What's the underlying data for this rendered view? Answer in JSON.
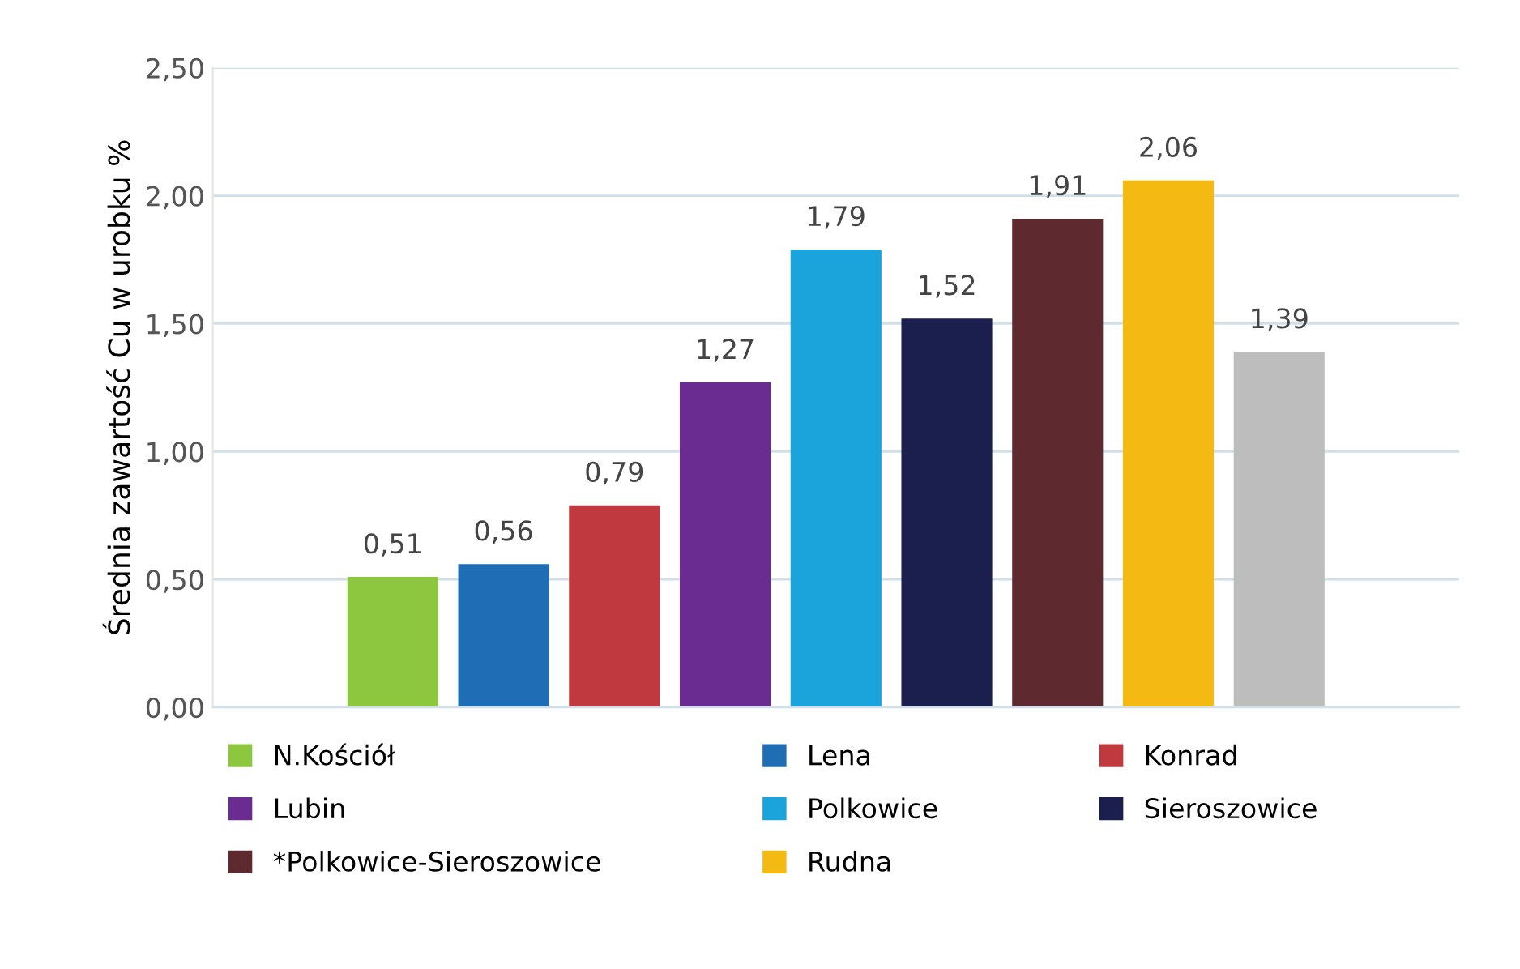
{
  "chart_data": {
    "type": "bar",
    "ylabel": "Średnia zawartość Cu w urobku %",
    "categories": [
      null
    ],
    "series": [
      {
        "name": "N.Kościół",
        "color": "#8dc63f",
        "values": [
          0.51
        ],
        "value_labels": [
          "0,51"
        ]
      },
      {
        "name": "Lena",
        "color": "#1f6db5",
        "values": [
          0.56
        ],
        "value_labels": [
          "0,56"
        ]
      },
      {
        "name": "Konrad",
        "color": "#c0393e",
        "values": [
          0.79
        ],
        "value_labels": [
          "0,79"
        ]
      },
      {
        "name": "Lubin",
        "color": "#6a2c91",
        "values": [
          1.27
        ],
        "value_labels": [
          "1,27"
        ]
      },
      {
        "name": "Polkowice",
        "color": "#1ba3dc",
        "values": [
          1.79
        ],
        "value_labels": [
          "1,79"
        ]
      },
      {
        "name": "Sieroszowice",
        "color": "#1b1f4e",
        "values": [
          1.52
        ],
        "value_labels": [
          "1,52"
        ]
      },
      {
        "name": "*Polkowice-Sieroszowice",
        "color": "#5e2a30",
        "values": [
          1.91
        ],
        "value_labels": [
          "1,91"
        ]
      },
      {
        "name": "Rudna",
        "color": "#f5b914",
        "values": [
          2.06
        ],
        "value_labels": [
          "2,06"
        ]
      },
      {
        "color": "#bdbdbd",
        "values": [
          1.39
        ],
        "value_labels": [
          "1,39"
        ]
      }
    ],
    "ylim": [
      0,
      2.5
    ],
    "yticks": [
      {
        "value": 0,
        "label": "0,00"
      },
      {
        "value": 0.5,
        "label": "0,50"
      },
      {
        "value": 1,
        "label": "1,00"
      },
      {
        "value": 1.5,
        "label": "1,50"
      },
      {
        "value": 2,
        "label": "2,00"
      },
      {
        "value": 2.5,
        "label": "2,50"
      }
    ],
    "grid": "y",
    "legend": "bottom"
  }
}
